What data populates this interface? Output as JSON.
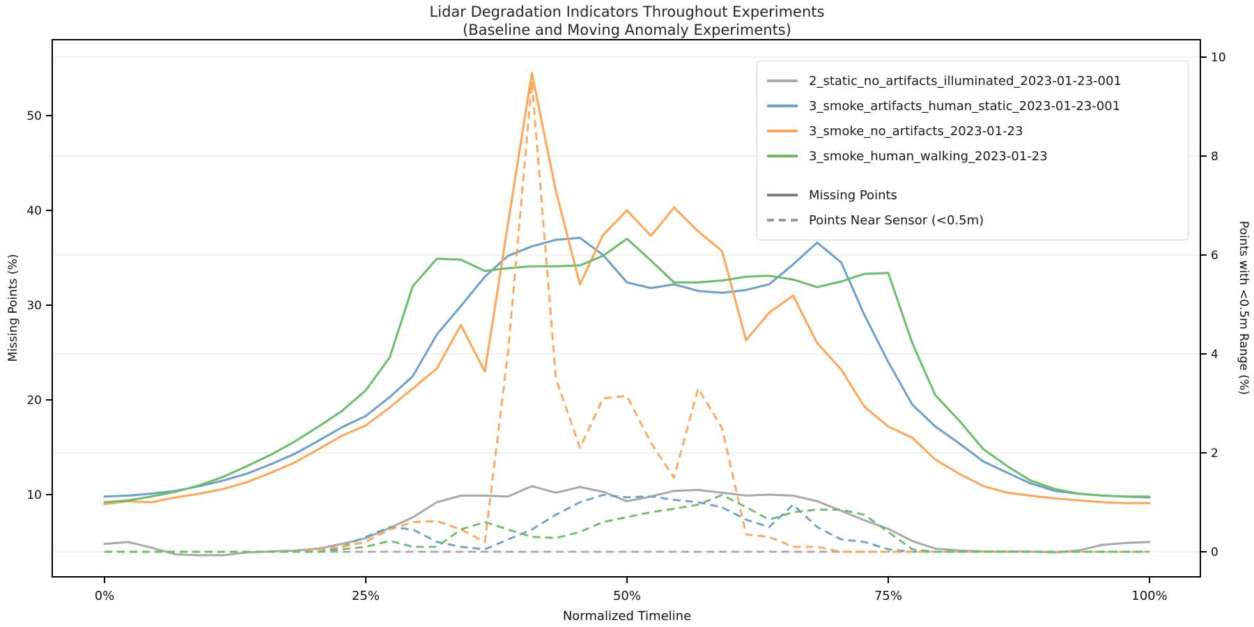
{
  "title": {
    "line1": "Lidar Degradation Indicators Throughout Experiments",
    "line2": "(Baseline and Moving Anomaly Experiments)"
  },
  "axes": {
    "x": {
      "title": "Normalized Timeline",
      "ticks": [
        {
          "pct": 0,
          "label": "0%"
        },
        {
          "pct": 25,
          "label": "25%"
        },
        {
          "pct": 50,
          "label": "50%"
        },
        {
          "pct": 75,
          "label": "75%"
        },
        {
          "pct": 100,
          "label": "100%"
        }
      ]
    },
    "y_left": {
      "title": "Missing Points (%)",
      "ticks": [
        10,
        20,
        30,
        40,
        50
      ]
    },
    "y_right": {
      "title": "Points with <0.5m Range (%)",
      "ticks": [
        0,
        2,
        4,
        6,
        8,
        10
      ]
    }
  },
  "colors": {
    "gray": "#a9a9a9",
    "blue": "#6ca0ca",
    "orange": "#ffa656",
    "green": "#6bbd6b",
    "style_solid": "#7f7f7f",
    "style_dashed": "#999999",
    "grid": "#e6e6e6",
    "spine": "#000000"
  },
  "legend": {
    "series": [
      {
        "label": "2_static_no_artifacts_illuminated_2023-01-23-001",
        "color": "#a9a9a9"
      },
      {
        "label": "3_smoke_artifacts_human_static_2023-01-23-001",
        "color": "#6ca0ca"
      },
      {
        "label": "3_smoke_no_artifacts_2023-01-23",
        "color": "#ffa656"
      },
      {
        "label": "3_smoke_human_walking_2023-01-23",
        "color": "#6bbd6b"
      }
    ],
    "styles": [
      {
        "label": "Missing Points",
        "color": "#7f7f7f",
        "dashed": false
      },
      {
        "label": "Points Near Sensor (<0.5m)",
        "color": "#999999",
        "dashed": true
      }
    ]
  },
  "chart_data": {
    "type": "line",
    "xlabel": "Normalized Timeline",
    "ylabel_left": "Missing Points (%)",
    "ylabel_right": "Points with <0.5m Range (%)",
    "x_range_pct": [
      0,
      100
    ],
    "ylim_left": [
      1.3,
      58.0
    ],
    "ylim_right": [
      -0.5,
      10.4
    ],
    "grid": "horizontal-right-axis",
    "legend_position": "upper right",
    "x_percent": [
      0,
      2.3,
      4.5,
      6.8,
      9.1,
      11.4,
      13.6,
      15.9,
      18.2,
      20.5,
      22.7,
      25,
      27.3,
      29.5,
      31.8,
      34.1,
      36.4,
      38.6,
      40.9,
      43.2,
      45.5,
      47.7,
      50,
      52.3,
      54.5,
      56.8,
      59.1,
      61.4,
      63.6,
      65.9,
      68.2,
      70.5,
      72.7,
      75,
      77.3,
      79.5,
      81.8,
      84.1,
      86.4,
      88.6,
      90.9,
      93.2,
      95.5,
      97.7,
      100
    ],
    "series": [
      {
        "name": "2_static_no_artifacts_illuminated_2023-01-23-001",
        "metric": "Missing Points",
        "axis": "left",
        "style": "solid",
        "color": "#a9a9a9",
        "values": [
          4.8,
          5.0,
          4.4,
          3.7,
          3.6,
          3.6,
          3.9,
          4.0,
          4.1,
          4.3,
          4.8,
          5.4,
          6.5,
          7.6,
          9.2,
          9.9,
          9.9,
          9.8,
          10.9,
          10.2,
          10.8,
          10.3,
          9.3,
          9.8,
          10.4,
          10.5,
          10.2,
          9.9,
          10.0,
          9.9,
          9.3,
          8.3,
          7.3,
          6.4,
          5.1,
          4.3,
          4.1,
          4.0,
          4.0,
          4.0,
          3.9,
          4.1,
          4.7,
          4.9,
          5.0
        ]
      },
      {
        "name": "3_smoke_artifacts_human_static_2023-01-23-001",
        "metric": "Missing Points",
        "axis": "left",
        "style": "solid",
        "color": "#6ca0ca",
        "values": [
          9.8,
          9.9,
          10.1,
          10.4,
          10.9,
          11.5,
          12.2,
          13.2,
          14.3,
          15.7,
          17.1,
          18.3,
          20.3,
          22.5,
          26.9,
          29.9,
          33.0,
          35.2,
          36.2,
          36.9,
          37.1,
          35.3,
          32.4,
          31.8,
          32.2,
          31.5,
          31.3,
          31.6,
          32.2,
          34.3,
          36.6,
          34.5,
          29.0,
          24.0,
          19.5,
          17.2,
          15.4,
          13.5,
          12.3,
          11.2,
          10.4,
          10.1,
          9.9,
          9.8,
          9.7
        ]
      },
      {
        "name": "3_smoke_no_artifacts_2023-01-23",
        "metric": "Missing Points",
        "axis": "left",
        "style": "solid",
        "color": "#ffa656",
        "values": [
          9.0,
          9.3,
          9.2,
          9.7,
          10.1,
          10.6,
          11.3,
          12.3,
          13.4,
          14.8,
          16.2,
          17.3,
          19.2,
          21.2,
          23.3,
          27.9,
          23.0,
          38.5,
          54.5,
          42.0,
          32.2,
          37.4,
          40.0,
          37.3,
          40.3,
          37.8,
          35.7,
          26.3,
          29.2,
          31.0,
          26.0,
          23.2,
          19.3,
          17.2,
          16.0,
          13.7,
          12.2,
          10.9,
          10.2,
          9.9,
          9.6,
          9.4,
          9.2,
          9.1,
          9.1
        ]
      },
      {
        "name": "3_smoke_human_walking_2023-01-23",
        "metric": "Missing Points",
        "axis": "left",
        "style": "solid",
        "color": "#6bbd6b",
        "values": [
          9.2,
          9.4,
          9.8,
          10.3,
          11.0,
          11.9,
          13.0,
          14.2,
          15.6,
          17.2,
          18.8,
          21.0,
          24.5,
          32.0,
          34.9,
          34.8,
          33.6,
          33.9,
          34.1,
          34.1,
          34.2,
          35.2,
          37.0,
          34.7,
          32.4,
          32.4,
          32.6,
          33.0,
          33.1,
          32.7,
          31.9,
          32.5,
          33.3,
          33.4,
          26.0,
          20.5,
          17.8,
          14.8,
          13.0,
          11.5,
          10.6,
          10.1,
          9.9,
          9.8,
          9.8
        ]
      },
      {
        "name": "2_static_no_artifacts_illuminated_2023-01-23-001",
        "metric": "Points Near Sensor (<0.5m)",
        "axis": "right",
        "style": "dashed",
        "color": "#a9a9a9",
        "values": [
          0,
          0,
          0,
          0,
          0,
          0,
          0,
          0,
          0,
          0,
          0,
          0,
          0,
          0,
          0,
          0,
          0,
          0,
          0,
          0,
          0,
          0,
          0,
          0,
          0,
          0,
          0,
          0,
          0,
          0,
          0,
          0,
          0,
          0,
          0,
          0,
          0,
          0,
          0,
          0,
          0,
          0,
          0,
          0,
          0
        ]
      },
      {
        "name": "3_smoke_artifacts_human_static_2023-01-23-001",
        "metric": "Points Near Sensor (<0.5m)",
        "axis": "right",
        "style": "dashed",
        "color": "#6ca0ca",
        "values": [
          0,
          0,
          0,
          0,
          0,
          0,
          0,
          0,
          0,
          0,
          0.1,
          0.3,
          0.5,
          0.45,
          0.2,
          0.1,
          0.05,
          0.25,
          0.45,
          0.75,
          1.0,
          1.15,
          1.1,
          1.12,
          1.05,
          1.0,
          0.9,
          0.65,
          0.5,
          0.95,
          0.5,
          0.25,
          0.2,
          0.05,
          0,
          0,
          0,
          0,
          0,
          0,
          0,
          0,
          0,
          0,
          0
        ]
      },
      {
        "name": "3_smoke_no_artifacts_2023-01-23",
        "metric": "Points Near Sensor (<0.5m)",
        "axis": "right",
        "style": "dashed",
        "color": "#ffa656",
        "values": [
          0,
          0,
          0,
          0,
          0,
          0,
          0,
          0,
          0,
          0.05,
          0.1,
          0.2,
          0.45,
          0.6,
          0.62,
          0.45,
          0.2,
          4.0,
          9.5,
          3.5,
          2.1,
          3.1,
          3.15,
          2.2,
          1.5,
          3.3,
          2.5,
          0.35,
          0.3,
          0.1,
          0.1,
          0,
          0,
          0,
          0,
          0,
          0,
          0,
          0,
          0,
          0,
          0,
          0,
          0,
          0
        ]
      },
      {
        "name": "3_smoke_human_walking_2023-01-23",
        "metric": "Points Near Sensor (<0.5m)",
        "axis": "right",
        "style": "dashed",
        "color": "#6bbd6b",
        "values": [
          0,
          0,
          0,
          0,
          0,
          0,
          0,
          0,
          0,
          0,
          0.05,
          0.1,
          0.22,
          0.1,
          0.1,
          0.45,
          0.6,
          0.45,
          0.3,
          0.28,
          0.4,
          0.6,
          0.7,
          0.8,
          0.87,
          0.95,
          1.15,
          0.9,
          0.65,
          0.8,
          0.85,
          0.85,
          0.75,
          0.4,
          0.05,
          0,
          0,
          0,
          0,
          0,
          0,
          0,
          0,
          0,
          0
        ]
      }
    ]
  }
}
